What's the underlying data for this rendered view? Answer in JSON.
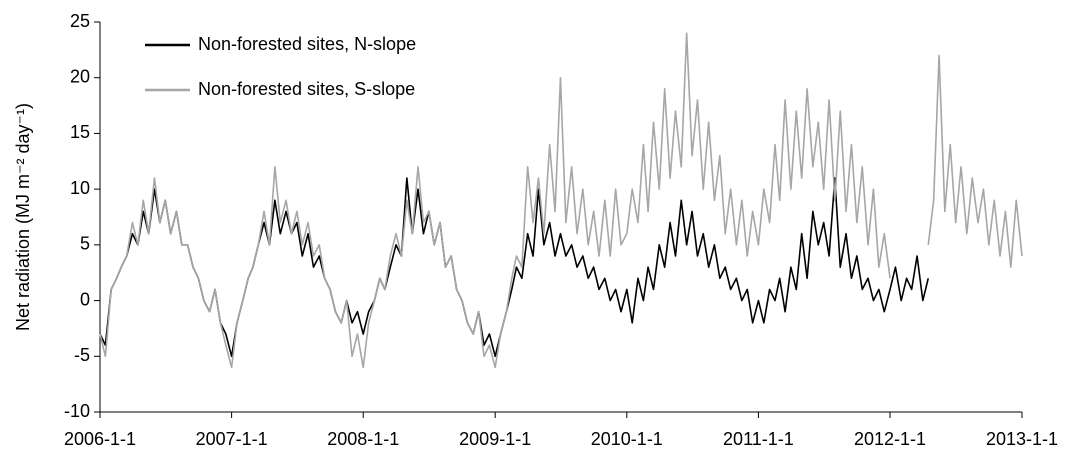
{
  "chart_data": {
    "type": "line",
    "y_label": "Net radiation (MJ m⁻² day⁻¹)",
    "x": [
      "2006-1-1",
      "2006-1-16",
      "2006-2-1",
      "2006-2-16",
      "2006-3-1",
      "2006-3-16",
      "2006-4-1",
      "2006-4-16",
      "2006-5-1",
      "2006-5-16",
      "2006-6-1",
      "2006-6-16",
      "2006-7-1",
      "2006-7-16",
      "2006-8-1",
      "2006-8-16",
      "2006-9-1",
      "2006-9-16",
      "2006-10-1",
      "2006-10-16",
      "2006-11-1",
      "2006-11-16",
      "2006-12-1",
      "2006-12-16",
      "2007-1-1",
      "2007-1-16",
      "2007-2-1",
      "2007-2-16",
      "2007-3-1",
      "2007-3-16",
      "2007-4-1",
      "2007-4-16",
      "2007-5-1",
      "2007-5-16",
      "2007-6-1",
      "2007-6-16",
      "2007-7-1",
      "2007-7-16",
      "2007-8-1",
      "2007-8-16",
      "2007-9-1",
      "2007-9-16",
      "2007-10-1",
      "2007-10-16",
      "2007-11-1",
      "2007-11-16",
      "2007-12-1",
      "2007-12-16",
      "2008-1-1",
      "2008-1-16",
      "2008-2-1",
      "2008-2-16",
      "2008-3-1",
      "2008-3-16",
      "2008-4-1",
      "2008-4-16",
      "2008-5-1",
      "2008-5-16",
      "2008-6-1",
      "2008-6-16",
      "2008-7-1",
      "2008-7-16",
      "2008-8-1",
      "2008-8-16",
      "2008-9-1",
      "2008-9-16",
      "2008-10-1",
      "2008-10-16",
      "2008-11-1",
      "2008-11-16",
      "2008-12-1",
      "2008-12-16",
      "2009-1-1",
      "2009-1-16",
      "2009-2-1",
      "2009-2-16",
      "2009-3-1",
      "2009-3-16",
      "2009-4-1",
      "2009-4-16",
      "2009-5-1",
      "2009-5-16",
      "2009-6-1",
      "2009-6-16",
      "2009-7-1",
      "2009-7-16",
      "2009-8-1",
      "2009-8-16",
      "2009-9-1",
      "2009-9-16",
      "2009-10-1",
      "2009-10-16",
      "2009-11-1",
      "2009-11-16",
      "2009-12-1",
      "2009-12-16",
      "2010-1-1",
      "2010-1-16",
      "2010-2-1",
      "2010-2-16",
      "2010-3-1",
      "2010-3-16",
      "2010-4-1",
      "2010-4-16",
      "2010-5-1",
      "2010-5-16",
      "2010-6-1",
      "2010-6-16",
      "2010-7-1",
      "2010-7-16",
      "2010-8-1",
      "2010-8-16",
      "2010-9-1",
      "2010-9-16",
      "2010-10-1",
      "2010-10-16",
      "2010-11-1",
      "2010-11-16",
      "2010-12-1",
      "2010-12-16",
      "2011-1-1",
      "2011-1-16",
      "2011-2-1",
      "2011-2-16",
      "2011-3-1",
      "2011-3-16",
      "2011-4-1",
      "2011-4-16",
      "2011-5-1",
      "2011-5-16",
      "2011-6-1",
      "2011-6-16",
      "2011-7-1",
      "2011-7-16",
      "2011-8-1",
      "2011-8-16",
      "2011-9-1",
      "2011-9-16",
      "2011-10-1",
      "2011-10-16",
      "2011-11-1",
      "2011-11-16",
      "2011-12-1",
      "2011-12-16",
      "2012-1-1",
      "2012-1-16",
      "2012-2-1",
      "2012-2-16",
      "2012-3-1",
      "2012-3-16",
      "2012-4-1",
      "2012-4-16",
      "2012-5-1",
      "2012-5-16",
      "2012-6-1",
      "2012-6-16",
      "2012-7-1",
      "2012-7-16",
      "2012-8-1",
      "2012-8-16",
      "2012-9-1",
      "2012-9-16",
      "2012-10-1",
      "2012-10-16",
      "2012-11-1",
      "2012-11-16",
      "2012-12-1",
      "2012-12-16",
      "2013-1-1"
    ],
    "series": [
      {
        "name": "Non-forested sites, N-slope",
        "color": "#000000",
        "values": [
          -3,
          -4,
          1,
          2,
          3,
          4,
          6,
          5,
          8,
          6,
          10,
          7,
          9,
          6,
          8,
          5,
          5,
          3,
          2,
          0,
          -1,
          1,
          -2,
          -3,
          -5,
          -2,
          0,
          2,
          3,
          5,
          7,
          5,
          9,
          6,
          8,
          6,
          7,
          4,
          6,
          3,
          4,
          2,
          1,
          -1,
          -2,
          0,
          -2,
          -1,
          -3,
          -1,
          0,
          2,
          1,
          3,
          5,
          4,
          11,
          6,
          10,
          6,
          8,
          5,
          7,
          3,
          4,
          1,
          0,
          -2,
          -3,
          -1,
          -4,
          -3,
          -5,
          -3,
          -1,
          1,
          3,
          2,
          6,
          4,
          10,
          5,
          7,
          4,
          6,
          4,
          5,
          3,
          4,
          2,
          3,
          1,
          2,
          0,
          1,
          -1,
          1,
          -2,
          2,
          0,
          3,
          1,
          5,
          3,
          7,
          4,
          9,
          5,
          8,
          4,
          6,
          3,
          5,
          2,
          3,
          1,
          2,
          0,
          1,
          -2,
          0,
          -2,
          1,
          0,
          2,
          -1,
          3,
          1,
          6,
          2,
          8,
          5,
          7,
          4,
          11,
          3,
          6,
          2,
          4,
          1,
          2,
          0,
          1,
          -1,
          1,
          3,
          0,
          2,
          1,
          4,
          0,
          2,
          null,
          null,
          null,
          null,
          null,
          null,
          null,
          null,
          null,
          null,
          null,
          null,
          null,
          null,
          null,
          null,
          null
        ]
      },
      {
        "name": "Non-forested sites, S-slope",
        "color": "#a6a6a6",
        "values": [
          -3,
          -5,
          1,
          2,
          3,
          4,
          7,
          5,
          9,
          6,
          11,
          7,
          9,
          6,
          8,
          5,
          5,
          3,
          2,
          0,
          -1,
          1,
          -2,
          -4,
          -6,
          -2,
          0,
          2,
          3,
          5,
          8,
          5,
          12,
          7,
          9,
          6,
          8,
          5,
          7,
          4,
          5,
          2,
          1,
          -1,
          -2,
          0,
          -5,
          -3,
          -6,
          -2,
          0,
          2,
          1,
          4,
          6,
          4,
          9,
          6,
          12,
          7,
          8,
          5,
          7,
          3,
          4,
          1,
          0,
          -2,
          -3,
          -1,
          -5,
          -4,
          -6,
          -3,
          -1,
          2,
          4,
          3,
          12,
          7,
          11,
          6,
          14,
          8,
          20,
          7,
          12,
          6,
          10,
          5,
          8,
          4,
          9,
          4,
          10,
          5,
          6,
          10,
          7,
          14,
          8,
          16,
          10,
          19,
          11,
          17,
          12,
          24,
          13,
          18,
          10,
          16,
          9,
          13,
          6,
          10,
          5,
          9,
          4,
          8,
          5,
          10,
          7,
          14,
          9,
          18,
          10,
          17,
          11,
          19,
          12,
          16,
          10,
          18,
          9,
          17,
          8,
          14,
          7,
          12,
          5,
          10,
          3,
          6,
          2,
          null,
          null,
          null,
          null,
          null,
          null,
          5,
          9,
          22,
          8,
          14,
          7,
          12,
          6,
          11,
          7,
          10,
          5,
          9,
          4,
          8,
          3,
          9,
          4
        ]
      }
    ],
    "xlim": [
      "2006-1-1",
      "2013-1-1"
    ],
    "xticks": [
      "2006-1-1",
      "2007-1-1",
      "2008-1-1",
      "2009-1-1",
      "2010-1-1",
      "2011-1-1",
      "2012-1-1",
      "2013-1-1"
    ],
    "ylim": [
      -10,
      25
    ],
    "yticks": [
      -10,
      -5,
      0,
      5,
      10,
      15,
      20,
      25
    ],
    "grid": false,
    "legend": "upper left"
  }
}
